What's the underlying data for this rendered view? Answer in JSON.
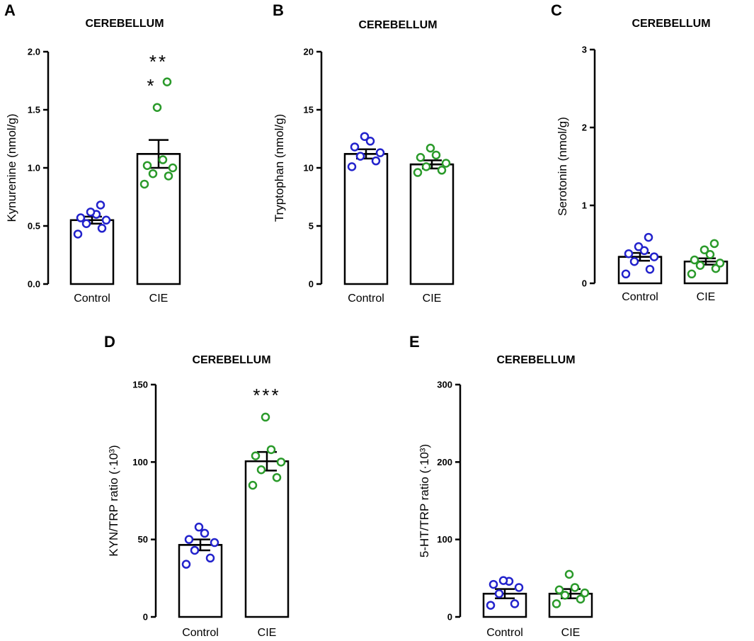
{
  "chart_data": [
    {
      "letter": "A",
      "type": "bar",
      "title": "CEREBELLUM",
      "ylabel": "Kynurenine (nmol/g)",
      "ylim": [
        0,
        2.0
      ],
      "yticks": [
        0.0,
        0.5,
        1.0,
        1.5,
        2.0
      ],
      "ytick_labels": [
        "0.0",
        "0.5",
        "1.0",
        "1.5",
        "2.0"
      ],
      "categories": [
        "Control",
        "CIE"
      ],
      "means": [
        0.55,
        1.12
      ],
      "sem": [
        0.03,
        0.12
      ],
      "points": [
        [
          0.43,
          0.48,
          0.52,
          0.55,
          0.57,
          0.6,
          0.62,
          0.68
        ],
        [
          0.86,
          0.93,
          0.95,
          1.0,
          1.02,
          1.07,
          1.52,
          1.74
        ]
      ],
      "point_colors": [
        "#2222cc",
        "#2a9a2a"
      ],
      "significance": [
        "",
        "**\n*"
      ]
    },
    {
      "letter": "B",
      "type": "bar",
      "title": "CEREBELLUM",
      "ylabel": "Tryptophan (nmol/g)",
      "ylim": [
        0,
        20
      ],
      "yticks": [
        0,
        5,
        10,
        15,
        20
      ],
      "ytick_labels": [
        "0",
        "5",
        "10",
        "15",
        "20"
      ],
      "categories": [
        "Control",
        "CIE"
      ],
      "means": [
        11.2,
        10.3
      ],
      "sem": [
        0.4,
        0.35
      ],
      "points": [
        [
          10.1,
          10.6,
          11.0,
          11.3,
          11.8,
          12.3,
          12.7
        ],
        [
          9.6,
          9.8,
          10.1,
          10.4,
          10.9,
          11.1,
          11.7
        ]
      ],
      "point_colors": [
        "#2222cc",
        "#2a9a2a"
      ],
      "significance": [
        "",
        ""
      ]
    },
    {
      "letter": "C",
      "type": "bar",
      "title": "CEREBELLUM",
      "ylabel": "Serotonin (nmol/g)",
      "ylim": [
        0,
        3
      ],
      "yticks": [
        0,
        1,
        2,
        3
      ],
      "ytick_labels": [
        "0",
        "1",
        "2",
        "3"
      ],
      "categories": [
        "Control",
        "CIE"
      ],
      "means": [
        0.34,
        0.28
      ],
      "sem": [
        0.05,
        0.04
      ],
      "points": [
        [
          0.12,
          0.18,
          0.28,
          0.34,
          0.38,
          0.42,
          0.47,
          0.59
        ],
        [
          0.12,
          0.19,
          0.23,
          0.26,
          0.3,
          0.37,
          0.43,
          0.51
        ]
      ],
      "point_colors": [
        "#2222cc",
        "#2a9a2a"
      ],
      "significance": [
        "",
        ""
      ]
    },
    {
      "letter": "D",
      "type": "bar",
      "title": "CEREBELLUM",
      "ylabel": "KYN/TRP ratio (·10³)",
      "ylim": [
        0,
        150
      ],
      "yticks": [
        0,
        50,
        100,
        150
      ],
      "ytick_labels": [
        "0",
        "50",
        "100",
        "150"
      ],
      "categories": [
        "Control",
        "CIE"
      ],
      "means": [
        46.5,
        100.5
      ],
      "sem": [
        3.5,
        6.0
      ],
      "points": [
        [
          34,
          38,
          43,
          48,
          50,
          54,
          58
        ],
        [
          85,
          90,
          95,
          100,
          104,
          108,
          129
        ]
      ],
      "point_colors": [
        "#2222cc",
        "#2a9a2a"
      ],
      "significance": [
        "",
        "***"
      ]
    },
    {
      "letter": "E",
      "type": "bar",
      "title": "CEREBELLUM",
      "ylabel": "5-HT/TRP ratio (·10³)",
      "ylim": [
        0,
        300
      ],
      "yticks": [
        0,
        100,
        200,
        300
      ],
      "ytick_labels": [
        "0",
        "100",
        "200",
        "300"
      ],
      "categories": [
        "Control",
        "CIE"
      ],
      "means": [
        30,
        30
      ],
      "sem": [
        6,
        6
      ],
      "points": [
        [
          15,
          17,
          30,
          38,
          42,
          46,
          47
        ],
        [
          17,
          23,
          28,
          31,
          35,
          38,
          55
        ]
      ],
      "point_colors": [
        "#2222cc",
        "#2a9a2a"
      ],
      "significance": [
        "",
        ""
      ]
    }
  ]
}
